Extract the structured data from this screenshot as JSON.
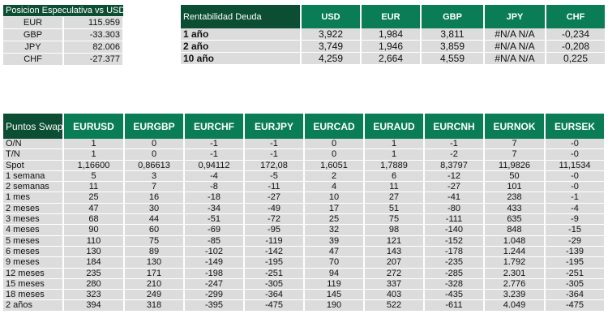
{
  "position": {
    "title": "Posicion Especulativa vs USD",
    "rows": [
      {
        "ccy": "EUR",
        "value": "115.959"
      },
      {
        "ccy": "GBP",
        "value": "-33.303"
      },
      {
        "ccy": "JPY",
        "value": "82.006"
      },
      {
        "ccy": "CHF",
        "value": "-27.377"
      }
    ]
  },
  "debt": {
    "title": "Rentabilidad Deuda",
    "columns": [
      "USD",
      "EUR",
      "GBP",
      "JPY",
      "CHF"
    ],
    "rows": [
      {
        "label": "1 año",
        "values": [
          "3,922",
          "1,984",
          "3,811",
          "#N/A N/A",
          "-0,234"
        ]
      },
      {
        "label": "2 año",
        "values": [
          "3,749",
          "1,946",
          "3,859",
          "#N/A N/A",
          "-0,208"
        ]
      },
      {
        "label": "10 año",
        "values": [
          "4,259",
          "2,664",
          "4,559",
          "#N/A N/A",
          "0,225"
        ]
      }
    ]
  },
  "swap": {
    "title": "Puntos Swap",
    "columns": [
      "EURUSD",
      "EURGBP",
      "EURCHF",
      "EURJPY",
      "EURCAD",
      "EURAUD",
      "EURCNH",
      "EURNOK",
      "EURSEK"
    ],
    "rows": [
      {
        "label": "O/N",
        "values": [
          "1",
          "0",
          "-1",
          "-1",
          "0",
          "1",
          "-1",
          "7",
          "-0"
        ]
      },
      {
        "label": "T/N",
        "values": [
          "1",
          "0",
          "-1",
          "-1",
          "0",
          "1",
          "-2",
          "7",
          "-0"
        ]
      },
      {
        "label": "Spot",
        "values": [
          "1,16600",
          "0,86613",
          "0,94112",
          "172,08",
          "1,6051",
          "1,7889",
          "8,3797",
          "11,9826",
          "11,1534"
        ]
      },
      {
        "label": "1 semana",
        "values": [
          "5",
          "3",
          "-4",
          "-5",
          "2",
          "6",
          "-12",
          "50",
          "-0"
        ]
      },
      {
        "label": "2 semanas",
        "values": [
          "11",
          "7",
          "-8",
          "-11",
          "4",
          "11",
          "-27",
          "101",
          "-0"
        ]
      },
      {
        "label": "1 mes",
        "values": [
          "25",
          "16",
          "-18",
          "-27",
          "10",
          "27",
          "-41",
          "238",
          "-1"
        ]
      },
      {
        "label": "2 meses",
        "values": [
          "47",
          "30",
          "-34",
          "-49",
          "17",
          "51",
          "-80",
          "433",
          "-4"
        ]
      },
      {
        "label": "3 meses",
        "values": [
          "68",
          "44",
          "-51",
          "-72",
          "25",
          "75",
          "-111",
          "635",
          "-9"
        ]
      },
      {
        "label": "4 meses",
        "values": [
          "90",
          "60",
          "-69",
          "-95",
          "32",
          "98",
          "-140",
          "848",
          "-15"
        ]
      },
      {
        "label": "5 meses",
        "values": [
          "110",
          "75",
          "-85",
          "-119",
          "39",
          "121",
          "-152",
          "1.048",
          "-29"
        ]
      },
      {
        "label": "6 meses",
        "values": [
          "130",
          "89",
          "-102",
          "-142",
          "47",
          "143",
          "-178",
          "1.244",
          "-139"
        ]
      },
      {
        "label": "9 meses",
        "values": [
          "184",
          "130",
          "-149",
          "-195",
          "70",
          "207",
          "-235",
          "1.792",
          "-195"
        ]
      },
      {
        "label": "12 meses",
        "values": [
          "235",
          "171",
          "-198",
          "-251",
          "94",
          "272",
          "-285",
          "2.301",
          "-251"
        ]
      },
      {
        "label": "15 meses",
        "values": [
          "280",
          "210",
          "-247",
          "-305",
          "119",
          "337",
          "-328",
          "2.776",
          "-305"
        ]
      },
      {
        "label": "18 meses",
        "values": [
          "323",
          "249",
          "-299",
          "-364",
          "145",
          "403",
          "-435",
          "3.239",
          "-364"
        ]
      },
      {
        "label": "2 años",
        "values": [
          "394",
          "318",
          "-395",
          "-475",
          "190",
          "522",
          "-611",
          "4.049",
          "-475"
        ]
      }
    ]
  }
}
